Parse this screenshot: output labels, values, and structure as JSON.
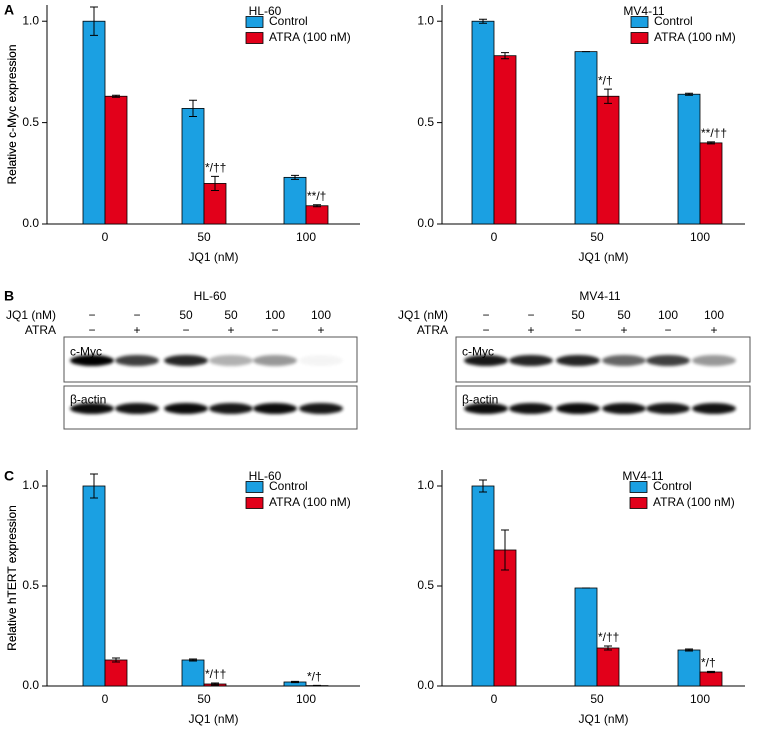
{
  "panels": [
    "A",
    "B",
    "C"
  ],
  "chart_data": [
    {
      "type": "bar",
      "title": "HL-60",
      "xlabel": "JQ1 (nM)",
      "ylabel": "Relative c-Myc expression",
      "categories": [
        "0",
        "50",
        "100"
      ],
      "series": [
        {
          "name": "Control",
          "color": "#1ba0e2",
          "values": [
            1.0,
            0.57,
            0.23
          ],
          "errors": [
            0.07,
            0.04,
            0.01
          ]
        },
        {
          "name": "ATRA (100 nM)",
          "color": "#e2001a",
          "values": [
            0.63,
            0.2,
            0.09
          ],
          "errors": [
            0.005,
            0.035,
            0.005
          ],
          "annotations": [
            null,
            "*/††",
            "**/†"
          ]
        }
      ],
      "ylim": [
        0,
        1.08
      ],
      "yticks": [
        {
          "value": 0,
          "label": "0.0"
        },
        0.5,
        {
          "value": 1,
          "label": "1.0"
        }
      ],
      "legend": "upper right"
    },
    {
      "type": "bar",
      "title": "MV4-11",
      "xlabel": "JQ1 (nM)",
      "ylabel": "Relative c-Myc expression",
      "categories": [
        "0",
        "50",
        "100"
      ],
      "series": [
        {
          "name": "Control",
          "color": "#1ba0e2",
          "values": [
            1.0,
            0.85,
            0.64
          ],
          "errors": [
            0.01,
            0.0,
            0.005
          ]
        },
        {
          "name": "ATRA (100 nM)",
          "color": "#e2001a",
          "values": [
            0.83,
            0.63,
            0.4
          ],
          "errors": [
            0.015,
            0.035,
            0.005
          ],
          "annotations": [
            null,
            "*/†",
            "**/††"
          ]
        }
      ],
      "ylim": [
        0,
        1.08
      ],
      "yticks": [
        {
          "value": 0,
          "label": "0.0"
        },
        0.5,
        {
          "value": 1,
          "label": "1.0"
        }
      ],
      "legend": "upper right"
    },
    {
      "type": "bar",
      "title": "HL-60",
      "xlabel": "JQ1 (nM)",
      "ylabel": "Relative hTERT expression",
      "categories": [
        "0",
        "50",
        "100"
      ],
      "series": [
        {
          "name": "Control",
          "color": "#1ba0e2",
          "values": [
            1.0,
            0.13,
            0.02
          ],
          "errors": [
            0.06,
            0.005,
            0.003
          ]
        },
        {
          "name": "ATRA (100 nM)",
          "color": "#e2001a",
          "values": [
            0.13,
            0.01,
            0.002
          ],
          "errors": [
            0.01,
            0.005,
            0.001
          ],
          "annotations": [
            null,
            "*/††",
            "*/†"
          ]
        }
      ],
      "ylim": [
        0,
        1.08
      ],
      "yticks": [
        {
          "value": 0,
          "label": "0.0"
        },
        0.5,
        {
          "value": 1,
          "label": "1.0"
        }
      ],
      "legend": "upper right"
    },
    {
      "type": "bar",
      "title": "MV4-11",
      "xlabel": "JQ1 (nM)",
      "ylabel": "Relative hTERT expression",
      "categories": [
        "0",
        "50",
        "100"
      ],
      "series": [
        {
          "name": "Control",
          "color": "#1ba0e2",
          "values": [
            1.0,
            0.49,
            0.18
          ],
          "errors": [
            0.03,
            0.0,
            0.005
          ]
        },
        {
          "name": "ATRA (100 nM)",
          "color": "#e2001a",
          "values": [
            0.68,
            0.19,
            0.07
          ],
          "errors": [
            0.1,
            0.01,
            0.003
          ],
          "annotations": [
            null,
            "*/††",
            "*/†"
          ]
        }
      ],
      "ylim": [
        0,
        1.08
      ],
      "yticks": [
        {
          "value": 0,
          "label": "0.0"
        },
        0.5,
        {
          "value": 1,
          "label": "1.0"
        }
      ],
      "legend": "upper right"
    }
  ],
  "blots": [
    {
      "title": "HL-60",
      "row_labels": [
        "JQ1 (nM)",
        "ATRA"
      ],
      "jq1": [
        "−",
        "−",
        "50",
        "50",
        "100",
        "100"
      ],
      "atra": [
        "−",
        "+",
        "−",
        "+",
        "−",
        "+"
      ],
      "bands": [
        "c-Myc",
        "β-actin"
      ]
    },
    {
      "title": "MV4-11",
      "row_labels": [
        "JQ1 (nM)",
        "ATRA"
      ],
      "jq1": [
        "−",
        "−",
        "50",
        "50",
        "100",
        "100"
      ],
      "atra": [
        "−",
        "+",
        "−",
        "+",
        "−",
        "+"
      ],
      "bands": [
        "c-Myc",
        "β-actin"
      ]
    }
  ]
}
